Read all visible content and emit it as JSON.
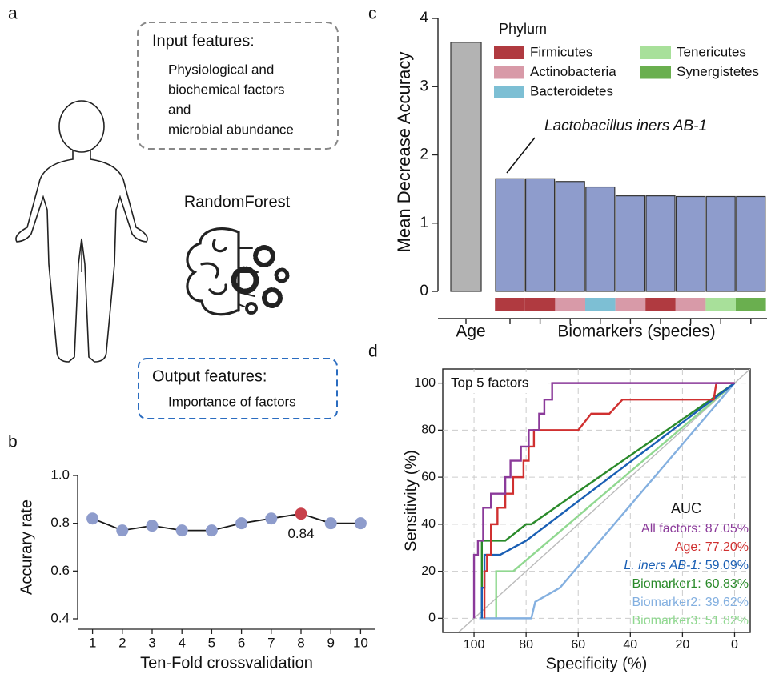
{
  "panel_labels": [
    "a",
    "b",
    "c",
    "d"
  ],
  "schematic": {
    "input_title": "Input features:",
    "input_lines": [
      "Physiological and",
      "biochemical factors",
      "and",
      "microbial abundance"
    ],
    "model": "RandomForest",
    "output_title": "Output features:",
    "output_lines": [
      "Importance of factors"
    ]
  },
  "chart_data": [
    {
      "type": "line",
      "xlabel": "Ten-Fold crossvalidation",
      "ylabel": "Accurary rate",
      "x": [
        1,
        2,
        3,
        4,
        5,
        6,
        7,
        8,
        9,
        10
      ],
      "values": [
        0.82,
        0.77,
        0.79,
        0.77,
        0.77,
        0.8,
        0.82,
        0.84,
        0.8,
        0.8
      ],
      "value_labels": [
        null,
        null,
        null,
        null,
        null,
        null,
        null,
        "0.84",
        null,
        null
      ],
      "point_colors": [
        "#8e9ccc",
        "#8e9ccc",
        "#8e9ccc",
        "#8e9ccc",
        "#8e9ccc",
        "#8e9ccc",
        "#8e9ccc",
        "#c8414b",
        "#8e9ccc",
        "#8e9ccc"
      ],
      "line_color": "#1a1a1a",
      "xlim": [
        0.5,
        10.5
      ],
      "ylim": [
        0.4,
        1.0
      ],
      "xticks": [
        1,
        2,
        3,
        4,
        5,
        6,
        7,
        8,
        9,
        10
      ],
      "yticks": [
        0.4,
        0.6,
        0.8,
        {
          "value": 1,
          "label": "1.0"
        }
      ]
    },
    {
      "type": "bar",
      "ylabel": "Mean Decrease Accuracy",
      "categories": [
        "Age",
        null,
        null,
        null,
        null,
        null,
        null,
        null,
        null,
        null
      ],
      "group_label": "Biomarkers (species)",
      "values": [
        3.65,
        1.65,
        1.65,
        1.61,
        1.53,
        1.4,
        1.4,
        1.39,
        1.39,
        1.39
      ],
      "colors": [
        "#b3b3b3",
        "#8e9ccc",
        "#8e9ccc",
        "#8e9ccc",
        "#8e9ccc",
        "#8e9ccc",
        "#8e9ccc",
        "#8e9ccc",
        "#8e9ccc",
        "#8e9ccc"
      ],
      "phylum": [
        null,
        "Firmicutes",
        "Firmicutes",
        "Actinobacteria",
        "Bacteroidetes",
        "Actinobacteria",
        "Firmicutes",
        "Actinobacteria",
        "Tenericutes",
        "Synergistetes"
      ],
      "ylim": [
        0,
        4
      ],
      "yticks": [
        0,
        1,
        2,
        3,
        4
      ],
      "legend": {
        "title": "Phylum",
        "items": [
          {
            "name": "Firmicutes",
            "color": "#b03a40"
          },
          {
            "name": "Actinobacteria",
            "color": "#d89aa8"
          },
          {
            "name": "Bacteroidetes",
            "color": "#7dbfd4"
          },
          {
            "name": "Tenericutes",
            "color": "#a8e09a"
          },
          {
            "name": "Synergistetes",
            "color": "#6aaf4f"
          }
        ]
      },
      "annotation": "Lactobacillus iners AB-1"
    },
    {
      "type": "line",
      "title": "Top 5 factors",
      "xlabel": "Specificity (%)",
      "ylabel": "Sensitivity (%)",
      "xlim": [
        112,
        -6
      ],
      "ylim": [
        -6,
        106
      ],
      "xticks": [
        100,
        80,
        60,
        40,
        20,
        0
      ],
      "yticks": [
        0,
        20,
        40,
        60,
        80,
        100
      ],
      "grid": true,
      "diagonal": true,
      "legend_title": "AUC",
      "series": [
        {
          "name": "All factors:",
          "color": "#8b3a9a",
          "auc": 87.05,
          "auc_label": "87.05%",
          "x": [
            100,
            100,
            98.5,
            98.5,
            96.5,
            96.5,
            93.5,
            93.5,
            88,
            88,
            86,
            86,
            82,
            82,
            79,
            79,
            75,
            75,
            73,
            73,
            70,
            70,
            0
          ],
          "values": [
            0,
            27,
            27,
            33,
            33,
            47,
            47,
            53,
            53,
            60,
            60,
            67,
            67,
            73,
            73,
            80,
            80,
            87,
            87,
            93,
            93,
            100,
            100
          ]
        },
        {
          "name": "Age:",
          "color": "#d03030",
          "auc": 77.2,
          "auc_label": "77.20%",
          "x": [
            96,
            96,
            95,
            95,
            93.5,
            93.5,
            91,
            91,
            88,
            88,
            85,
            85,
            81,
            81,
            79,
            79,
            77,
            77,
            60,
            55,
            48,
            43,
            8,
            7,
            0
          ],
          "values": [
            0,
            20,
            20,
            27,
            27,
            40,
            40,
            47,
            47,
            53,
            53,
            60,
            60,
            67,
            67,
            73,
            73,
            80,
            80,
            87,
            87,
            93,
            93,
            100,
            100
          ]
        },
        {
          "name": "L. iners AB-1:",
          "italic": true,
          "color": "#1a5fb4",
          "auc": 59.09,
          "auc_label": "59.09%",
          "x": [
            97,
            97,
            96,
            96,
            90,
            80,
            0
          ],
          "values": [
            0,
            13,
            13,
            27,
            27,
            33,
            100
          ]
        },
        {
          "name": "Biomarker1:",
          "color": "#2a8a2a",
          "auc": 60.83,
          "auc_label": "60.83%",
          "x": [
            97,
            97,
            88,
            80,
            78,
            0
          ],
          "values": [
            0,
            33,
            33,
            40,
            40,
            100
          ]
        },
        {
          "name": "Biomarker2:",
          "color": "#84b0e0",
          "auc": 39.62,
          "auc_label": "39.62%",
          "x": [
            98,
            78,
            76.5,
            67,
            0
          ],
          "values": [
            0,
            0,
            7,
            13,
            100
          ]
        },
        {
          "name": "Biomarker3:",
          "color": "#90d890",
          "auc": 51.82,
          "auc_label": "51.82%",
          "x": [
            91.5,
            91.5,
            85,
            0
          ],
          "values": [
            0,
            20,
            20,
            100
          ]
        }
      ]
    }
  ]
}
